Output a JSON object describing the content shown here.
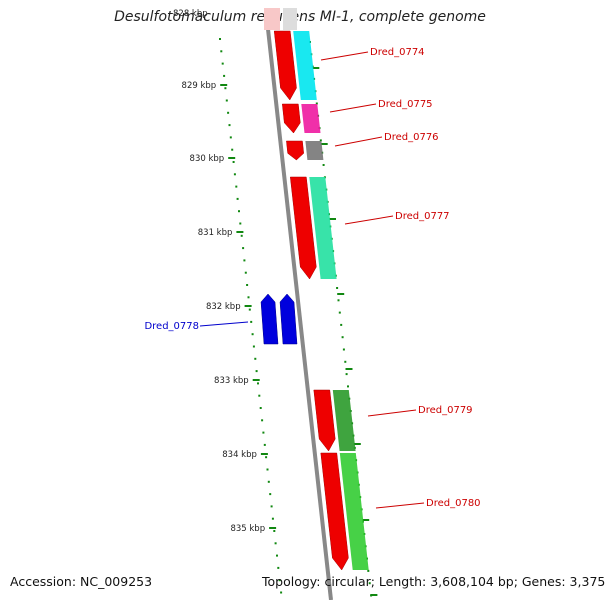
{
  "title": "Desulfotomaculum reducens MI-1, complete genome",
  "top_fragment_label": "828 kbp",
  "footer": {
    "accession": "Accession: NC_009253",
    "topology": "Topology: circular; Length: 3,608,104 bp; Genes: 3,375"
  },
  "colors": {
    "forward_strand": "#ee0000",
    "reverse_strand": "#0000dd",
    "backbone": "#888888",
    "tick": "#118811",
    "label_forward": "#cc0000",
    "label_reverse": "#0000cc"
  },
  "scale_labels": [
    "829 kbp",
    "830 kbp",
    "831 kbp",
    "832 kbp",
    "833 kbp",
    "834 kbp",
    "835 kbp"
  ],
  "genes": [
    {
      "name": "Dred_0774",
      "strand": "forward",
      "color": "#ee0000",
      "cog_color": "#00e5ee"
    },
    {
      "name": "Dred_0775",
      "strand": "forward",
      "color": "#ee0000",
      "cog_color": "#ee1aa0"
    },
    {
      "name": "Dred_0776",
      "strand": "forward",
      "color": "#ee0000",
      "cog_color": "#777777"
    },
    {
      "name": "Dred_0777",
      "strand": "forward",
      "color": "#ee0000",
      "cog_color": "#22e0a0"
    },
    {
      "name": "Dred_0778",
      "strand": "reverse",
      "color": "#0000dd",
      "cog_color": "#0000dd"
    },
    {
      "name": "Dred_0779",
      "strand": "forward",
      "color": "#ee0000",
      "cog_color": "#2a9a2a"
    },
    {
      "name": "Dred_0780",
      "strand": "forward",
      "color": "#ee0000",
      "cog_color": "#33cc33"
    }
  ]
}
